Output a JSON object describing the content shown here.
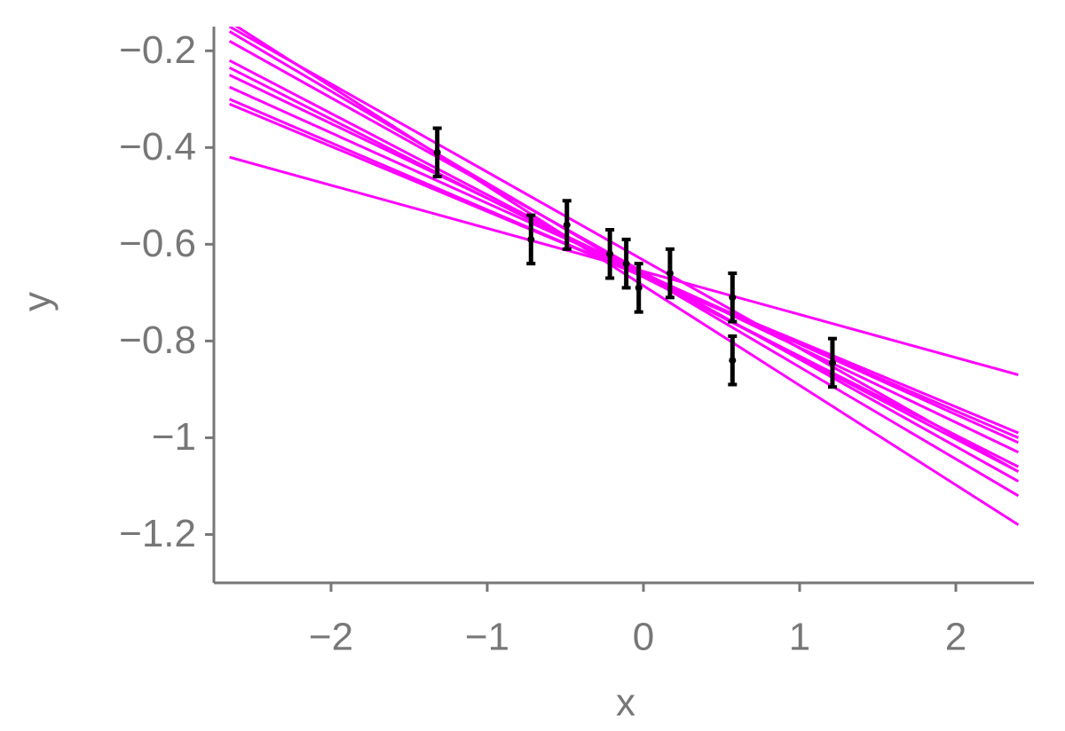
{
  "chart_data": {
    "type": "scatter",
    "x_label": "x",
    "y_label": "y",
    "xlim": [
      -2.75,
      2.5
    ],
    "ylim": [
      -1.3,
      -0.15
    ],
    "xticks": [
      {
        "value": -2,
        "label": "−2"
      },
      {
        "value": -1,
        "label": "−1"
      },
      0,
      1,
      2
    ],
    "yticks": [
      {
        "value": -0.2,
        "label": "−0.2"
      },
      {
        "value": -0.4,
        "label": "−0.4"
      },
      {
        "value": -0.6,
        "label": "−0.6"
      },
      {
        "value": -0.8,
        "label": "−0.8"
      },
      {
        "value": -1,
        "label": "−1"
      },
      {
        "value": -1.2,
        "label": "−1.2"
      }
    ],
    "grid": false,
    "point_color": "#000000",
    "line_color": "#ff00ff",
    "points": {
      "x": [
        -1.32,
        -0.72,
        -0.49,
        -0.215,
        -0.11,
        -0.03,
        0.17,
        0.57,
        0.57,
        1.21
      ],
      "values": [
        -0.41,
        -0.59,
        -0.56,
        -0.62,
        -0.64,
        -0.69,
        -0.66,
        -0.71,
        -0.84,
        -0.845
      ],
      "errors": [
        0.05,
        0.05,
        0.05,
        0.05,
        0.05,
        0.05,
        0.05,
        0.05,
        0.05,
        0.05
      ]
    },
    "line_x": [
      -2.65,
      2.4
    ],
    "lines": [
      {
        "values": [
          -0.42,
          -0.87
        ]
      },
      {
        "values": [
          -0.31,
          -0.99
        ]
      },
      {
        "values": [
          -0.3,
          -1.0
        ]
      },
      {
        "values": [
          -0.275,
          -1.01
        ]
      },
      {
        "values": [
          -0.25,
          -1.03
        ]
      },
      {
        "values": [
          -0.235,
          -1.06
        ]
      },
      {
        "values": [
          -0.22,
          -1.07
        ]
      },
      {
        "values": [
          -0.18,
          -1.09
        ]
      },
      {
        "values": [
          -0.16,
          -1.12
        ]
      },
      {
        "values": [
          -0.15,
          -1.07
        ]
      },
      {
        "values": [
          -0.14,
          -1.18
        ]
      }
    ]
  }
}
